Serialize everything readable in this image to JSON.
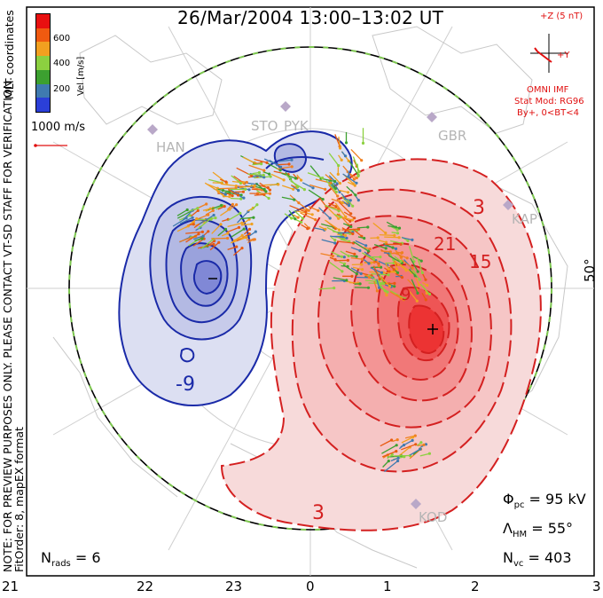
{
  "title": "26/Mar/2004 13:00–13:02 UT",
  "colorbar": {
    "label": "Vel [m/s]",
    "ticks": [
      "600",
      "400",
      "200"
    ],
    "colors": [
      "#e81010",
      "#f05a10",
      "#f2a020",
      "#8cd040",
      "#3ca030",
      "#3f7ab0",
      "#2b3fd8"
    ]
  },
  "vertical_notes": {
    "top": "MLT coordinates",
    "bottom1": "NOTE: FOR PREVIEW PURPOSES ONLY. PLEASE CONTACT VT-SD STAFF FOR VERIFICATION.",
    "bottom2": "FitOrder: 8,  mapEX format"
  },
  "scale_vector_label": "1000 m/s",
  "imf": {
    "z_label": "+Z (5 nT)",
    "y_label": "+Y",
    "lines": [
      "OMNI IMF",
      "Stat Mod: RG96",
      "By+,  0<BT<4"
    ]
  },
  "radars": [
    "HAN",
    "STO",
    "PYK",
    "GBR",
    "KAP",
    "KOD"
  ],
  "latitude_label": "50°",
  "contour_labels": {
    "negative": "-9",
    "positive": [
      "3",
      "21",
      "15",
      "9",
      "3"
    ]
  },
  "stats": {
    "phi": {
      "sym": "Φ",
      "sub": "pc",
      "val": " = 95 kV"
    },
    "lambda": {
      "sym": "Λ",
      "sub": "HM",
      "val": " = 55°"
    },
    "nvc": {
      "sym": "N",
      "sub": "vc",
      "val": " = 403"
    },
    "nrads": {
      "sym": "N",
      "sub": "rads",
      "val": " = 6"
    }
  },
  "mlt_labels": [
    "21",
    "22",
    "23",
    "0",
    "1",
    "2",
    "3"
  ],
  "colors": {
    "negative": "#1a2aa8",
    "positive": "#d42020",
    "boundary_dash": "#7ec850"
  }
}
